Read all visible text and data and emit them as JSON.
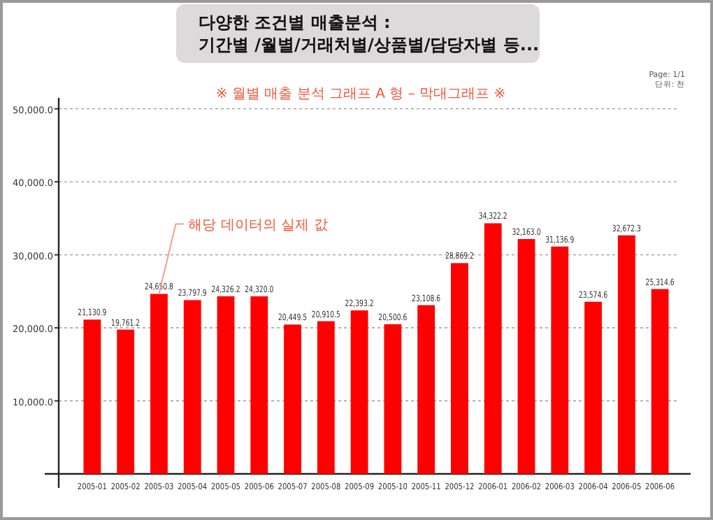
{
  "chart_data": {
    "type": "bar",
    "title": "다양한 조건별 매출분석 :\n기간별 /월별/거래처별/상품별/담당자별 등...",
    "subtitle": "※ 월별 매출 분석 그래프 A 형 – 막대그래프 ※",
    "annotations": [
      "Page: 1/1",
      "단위: 천",
      {
        "text": "해당 데이터의 실제 값",
        "x": "2005-03",
        "y": 24650.8
      }
    ],
    "categories": [
      "2005-01",
      "2005-02",
      "2005-03",
      "2005-04",
      "2005-05",
      "2005-06",
      "2005-07",
      "2005-08",
      "2005-09",
      "2005-10",
      "2005-11",
      "2005-12",
      "2006-01",
      "2006-02",
      "2006-03",
      "2006-04",
      "2006-05",
      "2006-06"
    ],
    "values": [
      21130.9,
      19761.2,
      24650.8,
      23797.9,
      24326.2,
      24320.0,
      20449.5,
      20910.5,
      22393.2,
      20500.6,
      23108.6,
      28869.2,
      34322.2,
      32163.0,
      31136.9,
      23574.6,
      32672.3,
      25314.6
    ],
    "value_labels": [
      "21,130.9",
      "19,761.2",
      "24,650.8",
      "23,797.9",
      "24,326.2",
      "24,320.0",
      "20,449.5",
      "20,910.5",
      "22,393.2",
      "20,500.6",
      "23,108.6",
      "28,869.2",
      "34,322.2",
      "32,163.0",
      "31,136.9",
      "23,574.6",
      "32,672.3",
      "25,314.6"
    ],
    "color": "#ff0000",
    "ylim": [
      0,
      51500
    ],
    "yticks": [
      {
        "value": 10000,
        "label": "10,000.0"
      },
      {
        "value": 20000,
        "label": "20,000.0"
      },
      {
        "value": 30000,
        "label": "30,000.0"
      },
      {
        "value": 40000,
        "label": "40,000.0"
      },
      {
        "value": 50000,
        "label": "50,000.0"
      }
    ],
    "grid": "y"
  }
}
